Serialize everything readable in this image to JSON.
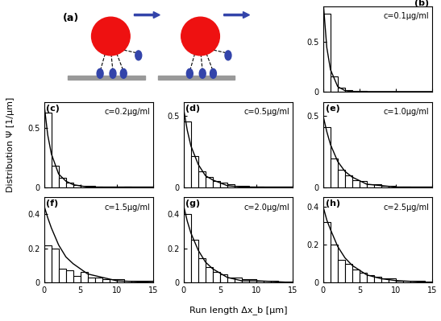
{
  "diagram": {
    "label": "(a)"
  },
  "y_label": "Distribution Ψ [1/μm]",
  "x_label": "Run length Δx_b [μm]",
  "chart_data": [
    {
      "type": "histogram",
      "label": "(b)",
      "title": "c=0.1μg/ml",
      "bins": [
        0,
        1,
        2,
        3,
        4,
        5,
        6,
        7,
        8,
        9,
        10,
        11,
        12,
        13,
        14,
        15
      ],
      "values": [
        0.78,
        0.15,
        0.04,
        0.015,
        0.005,
        0.005,
        0,
        0,
        0,
        0,
        0,
        0,
        0,
        0,
        0
      ],
      "fit": {
        "x": [
          0,
          0.5,
          1,
          2,
          3,
          4,
          6,
          8,
          10,
          15
        ],
        "values": [
          0.9,
          0.44,
          0.22,
          0.05,
          0.01,
          0,
          0,
          0,
          0,
          0
        ]
      },
      "xlim": [
        0,
        15
      ],
      "xticks": [
        0,
        5,
        10,
        15
      ],
      "ylim": [
        0,
        0.85
      ],
      "yticks": [
        0,
        0.5
      ],
      "tick_labels": "y"
    },
    {
      "type": "histogram",
      "label": "(c)",
      "title": "c=0.2μg/ml",
      "bins": [
        0,
        1,
        2,
        3,
        4,
        5,
        6,
        7,
        8,
        9,
        10,
        11,
        12,
        13,
        14,
        15
      ],
      "values": [
        0.63,
        0.18,
        0.08,
        0.04,
        0.02,
        0.01,
        0.01,
        0.005,
        0,
        0,
        0,
        0.005,
        0,
        0,
        0
      ],
      "fit": {
        "x": [
          0,
          0.5,
          1,
          2,
          3,
          4,
          6,
          8,
          10,
          15
        ],
        "values": [
          0.7,
          0.44,
          0.28,
          0.11,
          0.05,
          0.02,
          0,
          0,
          0,
          0
        ]
      },
      "xlim": [
        0,
        15
      ],
      "xticks": [
        0,
        5,
        10,
        15
      ],
      "ylim": [
        0,
        0.72
      ],
      "yticks": [
        0,
        0.5
      ],
      "tick_labels": "y"
    },
    {
      "type": "histogram",
      "label": "(d)",
      "title": "c=0.5μg/ml",
      "bins": [
        0,
        1,
        2,
        3,
        4,
        5,
        6,
        7,
        8,
        9,
        10,
        11,
        12,
        13,
        14,
        15
      ],
      "values": [
        0.46,
        0.22,
        0.11,
        0.07,
        0.04,
        0.03,
        0.02,
        0.01,
        0.01,
        0.005,
        0.005,
        0,
        0,
        0,
        0
      ],
      "fit": {
        "x": [
          0,
          0.5,
          1,
          2,
          3,
          4,
          6,
          8,
          10,
          15
        ],
        "values": [
          0.55,
          0.4,
          0.29,
          0.16,
          0.08,
          0.05,
          0.01,
          0,
          0,
          0
        ]
      },
      "xlim": [
        0,
        15
      ],
      "xticks": [
        0,
        5,
        10,
        15
      ],
      "ylim": [
        0,
        0.6
      ],
      "yticks": [
        0,
        0.5
      ],
      "tick_labels": "y"
    },
    {
      "type": "histogram",
      "label": "(e)",
      "title": "c=1.0μg/ml",
      "bins": [
        0,
        1,
        2,
        3,
        4,
        5,
        6,
        7,
        8,
        9,
        10,
        11,
        12,
        13,
        14,
        15
      ],
      "values": [
        0.42,
        0.2,
        0.12,
        0.08,
        0.05,
        0.04,
        0.02,
        0.02,
        0.01,
        0.01,
        0.005,
        0.005,
        0,
        0,
        0
      ],
      "fit": {
        "x": [
          0,
          0.5,
          1,
          2,
          3,
          4,
          6,
          8,
          10,
          15
        ],
        "values": [
          0.5,
          0.39,
          0.3,
          0.18,
          0.11,
          0.07,
          0.02,
          0.01,
          0,
          0
        ]
      },
      "xlim": [
        0,
        15
      ],
      "xticks": [
        0,
        5,
        10,
        15
      ],
      "ylim": [
        0,
        0.6
      ],
      "yticks": [
        0,
        0.5
      ],
      "tick_labels": "y"
    },
    {
      "type": "histogram",
      "label": "(f)",
      "title": "c=1.5μg/ml",
      "bins": [
        0,
        1,
        2,
        3,
        4,
        5,
        6,
        7,
        8,
        9,
        10,
        11,
        12,
        13,
        14,
        15
      ],
      "values": [
        0.22,
        0.2,
        0.08,
        0.07,
        0.04,
        0.06,
        0.03,
        0.03,
        0.02,
        0.02,
        0.02,
        0.01,
        0.01,
        0.01,
        0.01
      ],
      "fit": {
        "x": [
          0,
          0.5,
          1,
          2,
          3,
          4,
          6,
          8,
          10,
          15
        ],
        "values": [
          0.45,
          0.38,
          0.32,
          0.22,
          0.15,
          0.11,
          0.05,
          0.03,
          0.01,
          0
        ]
      },
      "xlim": [
        0,
        15
      ],
      "xticks": [
        0,
        5,
        10,
        15
      ],
      "ylim": [
        0,
        0.5
      ],
      "yticks": [
        0,
        0.2,
        0.4
      ]
    },
    {
      "type": "histogram",
      "label": "(g)",
      "title": "c=2.0μg/ml",
      "bins": [
        0,
        1,
        2,
        3,
        4,
        5,
        6,
        7,
        8,
        9,
        10,
        11,
        12,
        13,
        14,
        15
      ],
      "values": [
        0.4,
        0.25,
        0.14,
        0.09,
        0.06,
        0.05,
        0.03,
        0.03,
        0.02,
        0.02,
        0.01,
        0.01,
        0.01,
        0.005,
        0.005
      ],
      "fit": {
        "x": [
          0,
          0.5,
          1,
          2,
          3,
          4,
          6,
          8,
          10,
          15
        ],
        "values": [
          0.45,
          0.36,
          0.29,
          0.19,
          0.12,
          0.08,
          0.03,
          0.01,
          0.01,
          0
        ]
      },
      "xlim": [
        0,
        15
      ],
      "xticks": [
        0,
        5,
        10,
        15
      ],
      "ylim": [
        0,
        0.5
      ],
      "yticks": [
        0,
        0.2,
        0.4
      ]
    },
    {
      "type": "histogram",
      "label": "(h)",
      "title": "c=2.5μg/ml",
      "bins": [
        0,
        1,
        2,
        3,
        4,
        5,
        6,
        7,
        8,
        9,
        10,
        11,
        12,
        13,
        14,
        15
      ],
      "values": [
        0.32,
        0.2,
        0.12,
        0.1,
        0.07,
        0.05,
        0.04,
        0.03,
        0.02,
        0.02,
        0.01,
        0.01,
        0.01,
        0.01,
        0.005
      ],
      "fit": {
        "x": [
          0,
          0.5,
          1,
          2,
          3,
          4,
          6,
          8,
          10,
          15
        ],
        "values": [
          0.4,
          0.33,
          0.28,
          0.19,
          0.13,
          0.09,
          0.04,
          0.02,
          0.01,
          0
        ]
      },
      "xlim": [
        0,
        15
      ],
      "xticks": [
        0,
        5,
        10,
        15
      ],
      "ylim": [
        0,
        0.45
      ],
      "yticks": [
        0,
        0.2,
        0.4
      ]
    }
  ]
}
